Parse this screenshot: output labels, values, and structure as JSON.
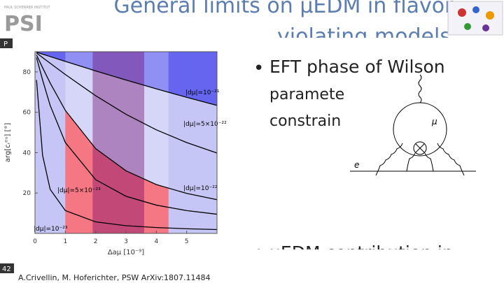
{
  "header": {
    "institute": "PAUL SCHERRER INSTITUT",
    "logo": "PSI",
    "title_line1": "General limits on μEDM in flavor",
    "title_line2": "violating models"
  },
  "side_tab": "P",
  "plot": {
    "x_label": "Δaμ [10⁻⁹]",
    "y_label": "arg[cᵣᵉᵘ] [°]",
    "xlim": [
      0,
      6
    ],
    "ylim": [
      0,
      90
    ],
    "xticks": [
      0,
      1,
      2,
      3,
      4,
      5
    ],
    "yticks": [
      20,
      40,
      60,
      80
    ],
    "x": [
      0.05,
      0.25,
      0.5,
      1,
      2,
      3,
      4,
      5,
      6
    ],
    "curves": [
      {
        "name": "|dμ|=10⁻²¹",
        "values": [
          89.8,
          88.8,
          87.6,
          85.2,
          80.5,
          76,
          71.6,
          67.4,
          63.4
        ]
      },
      {
        "name": "|dμ|=5×10⁻²²",
        "values": [
          89.4,
          87.1,
          84.3,
          78.7,
          68.2,
          59,
          51.3,
          45,
          39.8
        ]
      },
      {
        "name": "|dμ|=10⁻²²",
        "values": [
          88.4,
          82.1,
          74.5,
          60.9,
          42,
          31,
          24.2,
          19.8,
          16.7
        ]
      },
      {
        "name": "|dμ|=5×10⁻²³",
        "values": [
          87.1,
          76,
          63.4,
          45,
          26.6,
          18.4,
          14,
          11.3,
          9.5
        ]
      },
      {
        "name": "|dμ|=10⁻²³",
        "values": [
          76,
          38.7,
          21.8,
          11.3,
          5.7,
          3.8,
          2.9,
          2.3,
          1.9
        ]
      }
    ],
    "bands": [
      {
        "xrange": [
          1,
          4.4
        ],
        "color": "rgba(255,255,255,0.28)"
      },
      {
        "xrange": [
          1.9,
          3.6
        ],
        "color": "rgba(110,0,100,0.38)"
      }
    ],
    "colors": {
      "background": "#c6c6f6",
      "upper": "#6565f0",
      "lower_fill": "rgba(255,30,40,0.78)"
    }
  },
  "bullets": [
    {
      "lines": [
        "EFT phase of Wilson",
        "paramete",
        "constrain"
      ]
    },
    {
      "lines": [
        "μEDM contribution in"
      ]
    }
  ],
  "diagram": {
    "loop_label": "μ",
    "line_label": "e"
  },
  "footer": {
    "page": "42",
    "citation": "A.Crivellin, M. Hoferichter, PSW ArXiv:1807.11484"
  }
}
